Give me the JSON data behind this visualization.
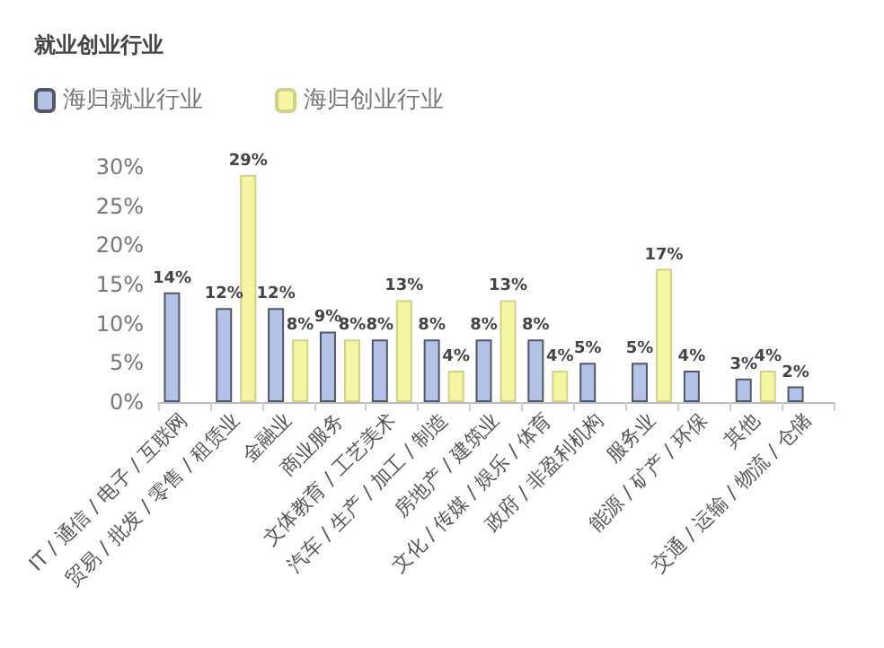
{
  "chart_data": {
    "type": "bar",
    "title": "就业创业行业",
    "categories": [
      "IT / 通信 / 电子 / 互联网",
      "贸易 / 批发 / 零售 / 租赁业",
      "金融业",
      "商业服务",
      "文体教育 / 工艺美术",
      "汽车 / 生产 / 加工 / 制造",
      "房地产 / 建筑业",
      "文化 / 传媒 / 娱乐 / 体育",
      "政府 / 非盈利机构",
      "服务业",
      "能源 / 矿产 / 环保",
      "其他",
      "交通 / 运输 / 物流 / 仓储"
    ],
    "series": [
      {
        "name": "海归就业行业",
        "color": "#b3c2e8",
        "values": [
          14,
          12,
          12,
          9,
          8,
          8,
          8,
          8,
          5,
          5,
          4,
          3,
          2
        ],
        "value_labels": [
          "14%",
          "12%",
          "12%",
          "9%",
          "8%",
          "8%",
          "8%",
          "8%",
          "5%",
          "5%",
          "4%",
          "3%",
          "2%"
        ]
      },
      {
        "name": "海归创业行业",
        "color": "#f6f5a2",
        "values": [
          null,
          29,
          8,
          8,
          13,
          4,
          13,
          4,
          null,
          17,
          null,
          4,
          null
        ],
        "value_labels": [
          null,
          "29%",
          "8%",
          "8%",
          "13%",
          "4%",
          "13%",
          "4%",
          null,
          "17%",
          null,
          "4%",
          null
        ]
      }
    ],
    "ylim": [
      0,
      30
    ],
    "yticks": [
      {
        "value": 0,
        "label": "0%"
      },
      {
        "value": 5,
        "label": "5%"
      },
      {
        "value": 10,
        "label": "10%"
      },
      {
        "value": 15,
        "label": "15%"
      },
      {
        "value": 20,
        "label": "20%"
      },
      {
        "value": 25,
        "label": "25%"
      },
      {
        "value": 30,
        "label": "30%"
      }
    ],
    "grid": false,
    "legend": "top left"
  }
}
